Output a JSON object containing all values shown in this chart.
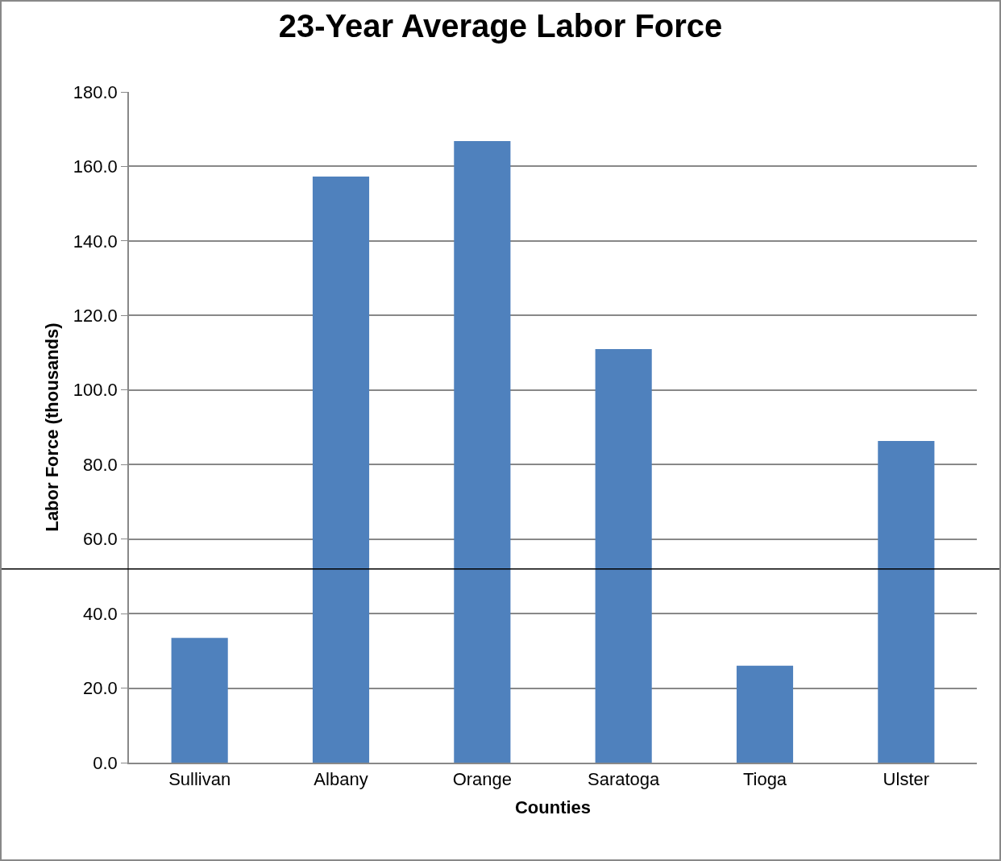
{
  "chart_data": {
    "type": "bar",
    "title": "23-Year Average Labor Force",
    "xlabel": "Counties",
    "ylabel": "Labor Force (thousands)",
    "categories": [
      "Sullivan",
      "Albany",
      "Orange",
      "Saratoga",
      "Tioga",
      "Ulster"
    ],
    "values": [
      33.5,
      157.3,
      166.8,
      111.0,
      26.0,
      86.3
    ],
    "color": "#4f81bd",
    "ylim": [
      0,
      180
    ],
    "yticks": [
      {
        "value": 0,
        "label": "0.0"
      },
      {
        "value": 20,
        "label": "20.0"
      },
      {
        "value": 40,
        "label": "40.0"
      },
      {
        "value": 60,
        "label": "60.0"
      },
      {
        "value": 80,
        "label": "80.0"
      },
      {
        "value": 100,
        "label": "100.0"
      },
      {
        "value": 120,
        "label": "120.0"
      },
      {
        "value": 140,
        "label": "140.0"
      },
      {
        "value": 160,
        "label": "160.0"
      },
      {
        "value": 180,
        "label": "180.0"
      }
    ],
    "grid": "y",
    "ref_lines": [
      {
        "axis": "y",
        "value": 52,
        "color": "#000000"
      }
    ]
  }
}
